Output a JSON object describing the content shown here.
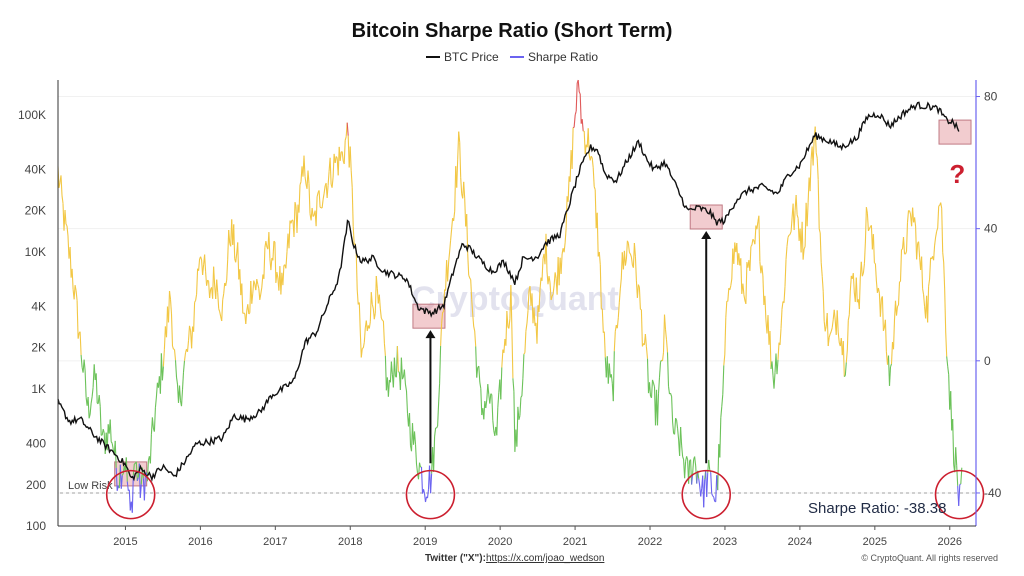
{
  "chart_data": {
    "type": "line",
    "title": "Bitcoin Sharpe Ratio (Short Term)",
    "watermark": "CryptoQuant",
    "legend": [
      {
        "name": "BTC Price",
        "color": "#111111"
      },
      {
        "name": "Sharpe Ratio",
        "color": "#6b63f0"
      }
    ],
    "x_ticks": [
      "2015",
      "2016",
      "2017",
      "2018",
      "2019",
      "2020",
      "2021",
      "2022",
      "2023",
      "2024",
      "2025",
      "2026"
    ],
    "x_range": [
      2014.1,
      2026.35
    ],
    "left_axis": {
      "scale": "log",
      "range": [
        100,
        180000
      ],
      "ticks": [
        100,
        200,
        400,
        1000,
        2000,
        4000,
        10000,
        20000,
        40000,
        100000
      ],
      "tick_labels": [
        "100",
        "200",
        "400",
        "1K",
        "2K",
        "4K",
        "10K",
        "20K",
        "40K",
        "100K"
      ]
    },
    "right_axis": {
      "range": [
        -50,
        85
      ],
      "ticks": [
        80,
        40,
        0,
        -40
      ],
      "tick_labels": [
        "80",
        "40",
        "0",
        "-40"
      ]
    },
    "low_risk_level": -40,
    "low_risk_label": "Low Risk",
    "color_bands": {
      "above_70": "#e05a5a",
      "0_to_70": "#f2c744",
      "-35_to_0": "#6cc25a",
      "below_-35": "#6b63f0"
    },
    "series": [
      {
        "name": "BTC Price",
        "axis": "left",
        "points": [
          [
            2014.1,
            800
          ],
          [
            2014.25,
            580
          ],
          [
            2014.4,
            600
          ],
          [
            2014.55,
            480
          ],
          [
            2014.7,
            400
          ],
          [
            2014.85,
            340
          ],
          [
            2015.0,
            280
          ],
          [
            2015.08,
            220
          ],
          [
            2015.2,
            260
          ],
          [
            2015.35,
            230
          ],
          [
            2015.5,
            270
          ],
          [
            2015.65,
            230
          ],
          [
            2015.8,
            300
          ],
          [
            2015.95,
            400
          ],
          [
            2016.1,
            410
          ],
          [
            2016.3,
            440
          ],
          [
            2016.45,
            640
          ],
          [
            2016.6,
            600
          ],
          [
            2016.8,
            680
          ],
          [
            2016.95,
            900
          ],
          [
            2017.1,
            1000
          ],
          [
            2017.25,
            1150
          ],
          [
            2017.4,
            2200
          ],
          [
            2017.55,
            2600
          ],
          [
            2017.7,
            4200
          ],
          [
            2017.85,
            6500
          ],
          [
            2017.97,
            17000
          ],
          [
            2018.05,
            11000
          ],
          [
            2018.15,
            8500
          ],
          [
            2018.3,
            9000
          ],
          [
            2018.45,
            7200
          ],
          [
            2018.6,
            6800
          ],
          [
            2018.75,
            6400
          ],
          [
            2018.9,
            4000
          ],
          [
            2019.0,
            3700
          ],
          [
            2019.1,
            3600
          ],
          [
            2019.25,
            4100
          ],
          [
            2019.4,
            8000
          ],
          [
            2019.5,
            11500
          ],
          [
            2019.6,
            10500
          ],
          [
            2019.75,
            8500
          ],
          [
            2019.9,
            7200
          ],
          [
            2020.05,
            8500
          ],
          [
            2020.2,
            6000
          ],
          [
            2020.3,
            8800
          ],
          [
            2020.5,
            9300
          ],
          [
            2020.6,
            11500
          ],
          [
            2020.8,
            13500
          ],
          [
            2020.95,
            25000
          ],
          [
            2021.05,
            38000
          ],
          [
            2021.2,
            58000
          ],
          [
            2021.3,
            56000
          ],
          [
            2021.4,
            37000
          ],
          [
            2021.55,
            33000
          ],
          [
            2021.7,
            47000
          ],
          [
            2021.85,
            64000
          ],
          [
            2021.95,
            48000
          ],
          [
            2022.05,
            40000
          ],
          [
            2022.2,
            45000
          ],
          [
            2022.35,
            30000
          ],
          [
            2022.5,
            20000
          ],
          [
            2022.65,
            21000
          ],
          [
            2022.8,
            19500
          ],
          [
            2022.88,
            16500
          ],
          [
            2023.0,
            17000
          ],
          [
            2023.15,
            24000
          ],
          [
            2023.3,
            28000
          ],
          [
            2023.5,
            30000
          ],
          [
            2023.7,
            26500
          ],
          [
            2023.85,
            37000
          ],
          [
            2024.0,
            43000
          ],
          [
            2024.2,
            71000
          ],
          [
            2024.4,
            64000
          ],
          [
            2024.55,
            58000
          ],
          [
            2024.75,
            67000
          ],
          [
            2024.9,
            97000
          ],
          [
            2025.05,
            102000
          ],
          [
            2025.2,
            83000
          ],
          [
            2025.4,
            105000
          ],
          [
            2025.55,
            118000
          ],
          [
            2025.75,
            115000
          ],
          [
            2025.85,
            110000
          ],
          [
            2025.95,
            92000
          ],
          [
            2026.05,
            88000
          ],
          [
            2026.12,
            76000
          ]
        ]
      },
      {
        "name": "Sharpe Ratio",
        "axis": "right",
        "points": [
          [
            2014.1,
            57
          ],
          [
            2014.2,
            40
          ],
          [
            2014.3,
            25
          ],
          [
            2014.4,
            5
          ],
          [
            2014.5,
            -15
          ],
          [
            2014.6,
            -5
          ],
          [
            2014.7,
            -25
          ],
          [
            2014.8,
            -20
          ],
          [
            2014.9,
            -35
          ],
          [
            2015.0,
            -30
          ],
          [
            2015.07,
            -48
          ],
          [
            2015.12,
            -30
          ],
          [
            2015.2,
            -38
          ],
          [
            2015.3,
            -35
          ],
          [
            2015.4,
            -15
          ],
          [
            2015.5,
            0
          ],
          [
            2015.6,
            20
          ],
          [
            2015.7,
            -15
          ],
          [
            2015.8,
            0
          ],
          [
            2015.9,
            10
          ],
          [
            2016.0,
            35
          ],
          [
            2016.1,
            20
          ],
          [
            2016.2,
            25
          ],
          [
            2016.3,
            15
          ],
          [
            2016.4,
            40
          ],
          [
            2016.5,
            30
          ],
          [
            2016.6,
            10
          ],
          [
            2016.7,
            25
          ],
          [
            2016.8,
            20
          ],
          [
            2016.9,
            35
          ],
          [
            2017.0,
            30
          ],
          [
            2017.1,
            20
          ],
          [
            2017.2,
            40
          ],
          [
            2017.3,
            45
          ],
          [
            2017.4,
            60
          ],
          [
            2017.5,
            40
          ],
          [
            2017.6,
            50
          ],
          [
            2017.7,
            55
          ],
          [
            2017.8,
            60
          ],
          [
            2017.9,
            62
          ],
          [
            2017.97,
            70
          ],
          [
            2018.05,
            40
          ],
          [
            2018.15,
            0
          ],
          [
            2018.25,
            15
          ],
          [
            2018.35,
            20
          ],
          [
            2018.45,
            5
          ],
          [
            2018.5,
            -10
          ],
          [
            2018.6,
            0
          ],
          [
            2018.7,
            -5
          ],
          [
            2018.8,
            -20
          ],
          [
            2018.9,
            -30
          ],
          [
            2019.0,
            -38
          ],
          [
            2019.08,
            -35
          ],
          [
            2019.15,
            -20
          ],
          [
            2019.25,
            20
          ],
          [
            2019.35,
            40
          ],
          [
            2019.45,
            65
          ],
          [
            2019.55,
            40
          ],
          [
            2019.65,
            10
          ],
          [
            2019.75,
            -15
          ],
          [
            2019.85,
            -10
          ],
          [
            2019.95,
            -25
          ],
          [
            2020.05,
            5
          ],
          [
            2020.15,
            20
          ],
          [
            2020.2,
            -28
          ],
          [
            2020.3,
            -5
          ],
          [
            2020.4,
            20
          ],
          [
            2020.5,
            10
          ],
          [
            2020.6,
            35
          ],
          [
            2020.7,
            20
          ],
          [
            2020.8,
            30
          ],
          [
            2020.9,
            45
          ],
          [
            2021.0,
            75
          ],
          [
            2021.05,
            85
          ],
          [
            2021.1,
            70
          ],
          [
            2021.2,
            65
          ],
          [
            2021.3,
            40
          ],
          [
            2021.4,
            0
          ],
          [
            2021.5,
            -10
          ],
          [
            2021.6,
            25
          ],
          [
            2021.7,
            35
          ],
          [
            2021.8,
            30
          ],
          [
            2021.9,
            10
          ],
          [
            2022.0,
            -10
          ],
          [
            2022.1,
            -15
          ],
          [
            2022.2,
            10
          ],
          [
            2022.3,
            -20
          ],
          [
            2022.4,
            -25
          ],
          [
            2022.5,
            -35
          ],
          [
            2022.6,
            -30
          ],
          [
            2022.7,
            -40
          ],
          [
            2022.78,
            -35
          ],
          [
            2022.88,
            -42
          ],
          [
            2022.95,
            -20
          ],
          [
            2023.05,
            25
          ],
          [
            2023.15,
            35
          ],
          [
            2023.25,
            20
          ],
          [
            2023.35,
            30
          ],
          [
            2023.45,
            40
          ],
          [
            2023.55,
            15
          ],
          [
            2023.65,
            -5
          ],
          [
            2023.75,
            10
          ],
          [
            2023.85,
            40
          ],
          [
            2023.95,
            45
          ],
          [
            2024.05,
            35
          ],
          [
            2024.15,
            60
          ],
          [
            2024.22,
            68
          ],
          [
            2024.3,
            20
          ],
          [
            2024.4,
            5
          ],
          [
            2024.5,
            15
          ],
          [
            2024.6,
            0
          ],
          [
            2024.7,
            25
          ],
          [
            2024.8,
            20
          ],
          [
            2024.9,
            45
          ],
          [
            2025.0,
            30
          ],
          [
            2025.1,
            15
          ],
          [
            2025.2,
            -5
          ],
          [
            2025.3,
            20
          ],
          [
            2025.4,
            35
          ],
          [
            2025.5,
            45
          ],
          [
            2025.6,
            30
          ],
          [
            2025.7,
            15
          ],
          [
            2025.8,
            40
          ],
          [
            2025.88,
            50
          ],
          [
            2025.95,
            10
          ],
          [
            2026.0,
            -10
          ],
          [
            2026.05,
            -25
          ],
          [
            2026.1,
            -35
          ],
          [
            2026.13,
            -44
          ],
          [
            2026.16,
            -38
          ]
        ]
      }
    ]
  },
  "annotations": {
    "value_label": "Sharpe Ratio: -38.38",
    "question_mark": "?"
  },
  "footer": {
    "twitter_label": "Twitter (\"X\"):",
    "twitter_link": "https://x.com/joao_wedson",
    "credit": "© CryptoQuant. All rights reserved"
  }
}
